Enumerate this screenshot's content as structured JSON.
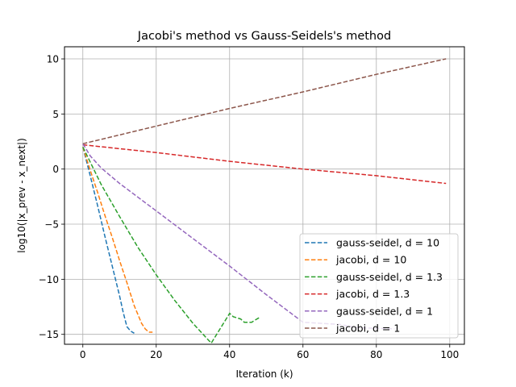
{
  "chart_data": {
    "type": "line",
    "title": "Jacobi's method vs Gauss-Seidels's method",
    "xlabel": "Iteration (k)",
    "ylabel": "log10(|x_prev - x_next|)",
    "xlim": [
      -5,
      104
    ],
    "ylim": [
      -15.9,
      11.1
    ],
    "x_ticks": [
      0,
      20,
      40,
      60,
      80,
      100
    ],
    "x_tick_labels": [
      "0",
      "20",
      "40",
      "60",
      "80",
      "100"
    ],
    "y_ticks": [
      -15,
      -10,
      -5,
      0,
      5,
      10
    ],
    "y_tick_labels": [
      "−15",
      "−10",
      "−5",
      "0",
      "5",
      "10"
    ],
    "grid": true,
    "legend_position": "lower-right",
    "line_style": "dashed",
    "series": [
      {
        "name": "gauss-seidel, d = 10",
        "color": "#1f77b4",
        "x": [
          0,
          2,
          4,
          6,
          8,
          10,
          11,
          12,
          13,
          14
        ],
        "y": [
          2.0,
          -0.6,
          -3.3,
          -6.1,
          -8.8,
          -11.5,
          -13.0,
          -14.3,
          -14.7,
          -14.9
        ]
      },
      {
        "name": "jacobi, d = 10",
        "color": "#ff7f0e",
        "x": [
          0,
          2,
          4,
          6,
          8,
          10,
          12,
          14,
          16,
          17,
          18,
          19
        ],
        "y": [
          2.0,
          -0.1,
          -2.1,
          -4.2,
          -6.2,
          -8.3,
          -10.3,
          -12.4,
          -14.0,
          -14.5,
          -14.8,
          -14.8
        ]
      },
      {
        "name": "gauss-seidel, d = 1.3",
        "color": "#2ca02c",
        "x": [
          0,
          5,
          10,
          15,
          20,
          25,
          30,
          35,
          40,
          41,
          42,
          43,
          44,
          45,
          46,
          47,
          48
        ],
        "y": [
          2.0,
          -1.4,
          -4.3,
          -7.1,
          -9.6,
          -11.9,
          -14.0,
          -15.8,
          -13.1,
          -13.4,
          -13.5,
          -13.6,
          -13.9,
          -13.9,
          -13.9,
          -13.7,
          -13.5
        ]
      },
      {
        "name": "jacobi, d = 1.3",
        "color": "#d62728",
        "x": [
          0,
          20,
          40,
          60,
          80,
          99
        ],
        "y": [
          2.2,
          1.5,
          0.7,
          0.0,
          -0.6,
          -1.3
        ]
      },
      {
        "name": "gauss-seidel, d = 1",
        "color": "#9467bd",
        "x": [
          0,
          2,
          5,
          10,
          20,
          30,
          40,
          50,
          60,
          70,
          75,
          85
        ],
        "y": [
          2.3,
          1.2,
          0.1,
          -1.3,
          -3.8,
          -6.3,
          -8.8,
          -11.4,
          -13.9,
          -14.1,
          -14.4,
          -14.5
        ]
      },
      {
        "name": "jacobi, d = 1",
        "color": "#8c564b",
        "x": [
          0,
          20,
          40,
          60,
          80,
          99
        ],
        "y": [
          2.3,
          3.9,
          5.5,
          7.0,
          8.6,
          10.0
        ]
      }
    ]
  }
}
